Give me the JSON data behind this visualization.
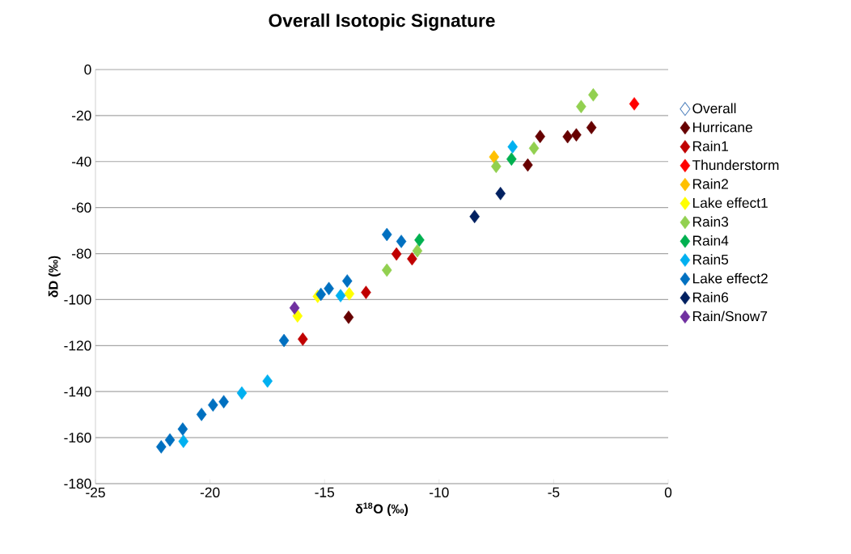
{
  "chart_data": {
    "type": "scatter",
    "title": "Overall Isotopic Signature",
    "xlabel": "δ$^{18}$O (‰)",
    "ylabel": "δD (‰)",
    "xlim": [
      -25,
      0
    ],
    "xticks": [
      -25,
      -20,
      -15,
      -10,
      -5,
      0
    ],
    "ylim": [
      -180,
      0
    ],
    "yticks": [
      -180,
      -160,
      -140,
      -120,
      -100,
      -80,
      -60,
      -40,
      -20,
      0
    ],
    "grid": "y",
    "legend": "right",
    "marker": "diamond",
    "series": [
      {
        "name": "Overall",
        "color": "#4f81bd"
      },
      {
        "name": "Hurricane",
        "color": "#660000",
        "x": [
          -3.35,
          -4.01,
          -4.39,
          -5.59,
          -6.13,
          -13.95
        ],
        "values": [
          -25.2,
          -28.4,
          -29.2,
          -29.1,
          -41.5,
          -107.7
        ]
      },
      {
        "name": "Rain1",
        "color": "#c00000",
        "x": [
          -11.86,
          -11.18,
          -13.19,
          -15.95
        ],
        "values": [
          -80.2,
          -82.3,
          -96.9,
          -117.2
        ]
      },
      {
        "name": "Thunderstorm",
        "color": "#ff0000",
        "x": [
          -1.48
        ],
        "values": [
          -14.9
        ]
      },
      {
        "name": "Rain2",
        "color": "#ffc000",
        "x": [
          -7.6
        ],
        "values": [
          -38.0
        ]
      },
      {
        "name": "Lake effect1",
        "color": "#ffff00",
        "x": [
          -16.18,
          -15.3,
          -13.92
        ],
        "values": [
          -107.1,
          -98.6,
          -97.5
        ]
      },
      {
        "name": "Rain3",
        "color": "#92d050",
        "x": [
          -3.27,
          -3.8,
          -5.86,
          -7.51,
          -10.95,
          -12.28
        ],
        "values": [
          -11.0,
          -16.1,
          -34.2,
          -42.1,
          -78.8,
          -87.2
        ]
      },
      {
        "name": "Rain4",
        "color": "#00b050",
        "x": [
          -6.84,
          -10.86
        ],
        "values": [
          -38.9,
          -74.1
        ]
      },
      {
        "name": "Rain5",
        "color": "#00b0f0",
        "x": [
          -6.79,
          -14.3,
          -17.49,
          -18.61,
          -21.16
        ],
        "values": [
          -33.6,
          -98.3,
          -135.4,
          -140.6,
          -161.6
        ]
      },
      {
        "name": "Lake effect2",
        "color": "#0070c0",
        "x": [
          -12.28,
          -11.65,
          -14.81,
          -15.16,
          -14.01,
          -16.77,
          -19.4,
          -19.87,
          -20.37,
          -21.19,
          -21.75,
          -22.13
        ],
        "values": [
          -71.7,
          -74.7,
          -95.2,
          -97.7,
          -91.9,
          -117.8,
          -144.4,
          -145.8,
          -149.9,
          -156.3,
          -161.0,
          -164.0
        ]
      },
      {
        "name": "Rain6",
        "color": "#002060",
        "x": [
          -7.32,
          -8.45
        ],
        "values": [
          -53.9,
          -63.9
        ]
      },
      {
        "name": "Rain/Snow7",
        "color": "#7030a0",
        "x": [
          -16.31
        ],
        "values": [
          -103.6
        ]
      }
    ]
  }
}
